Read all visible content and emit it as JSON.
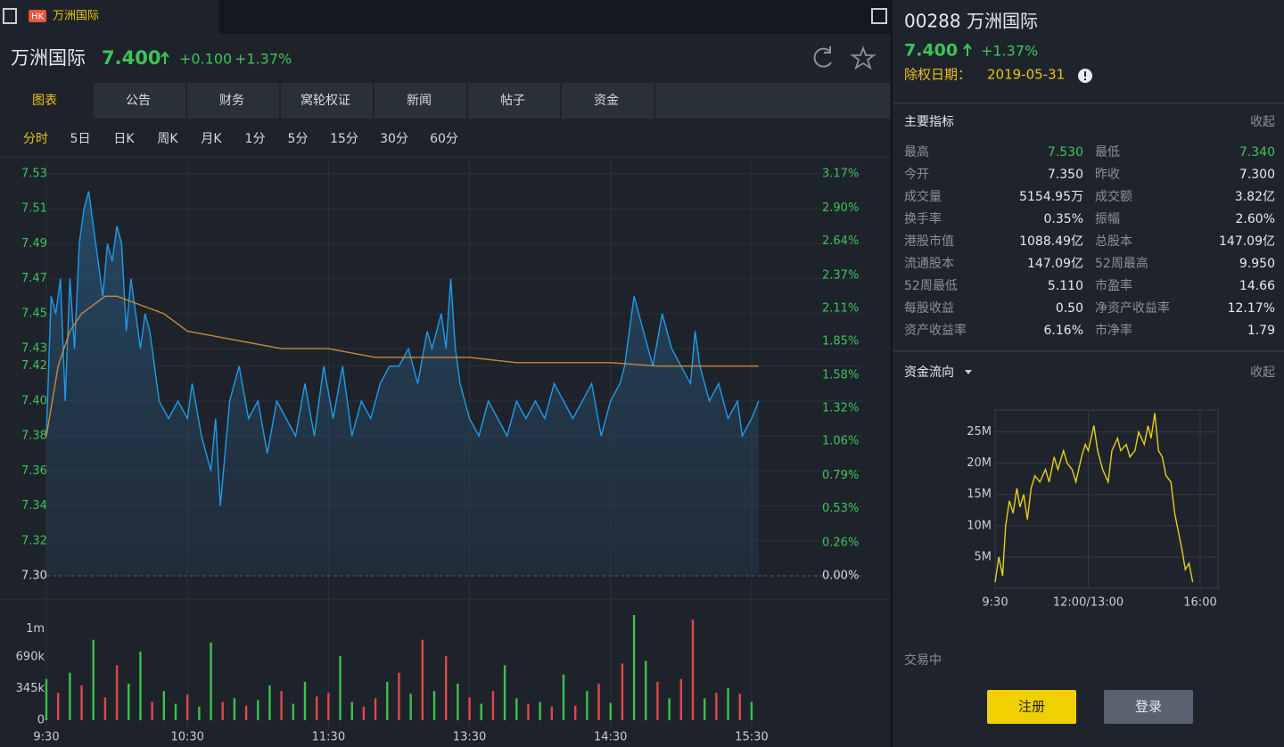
{
  "window": {
    "badge": "HK",
    "tab": "万洲国际"
  },
  "header": {
    "name": "万洲国际",
    "price": "7.400",
    "change": "+0.100",
    "change_pct": "+1.37%"
  },
  "tabs": [
    "图表",
    "公告",
    "财务",
    "窝轮权证",
    "新闻",
    "帖子",
    "资金"
  ],
  "periods": [
    "分时",
    "5日",
    "日K",
    "周K",
    "月K",
    "1分",
    "5分",
    "15分",
    "30分",
    "60分"
  ],
  "sidebar": {
    "title": "00288 万洲国际",
    "price": "7.400",
    "change_pct": "+1.37%",
    "ex_date_label": "除权日期：",
    "ex_date": "2019-05-31",
    "indicators_title": "主要指标",
    "collapse": "收起",
    "flow_title": "资金流向",
    "flow_collapse": "收起",
    "status": "交易中",
    "register": "注册",
    "login": "登录",
    "indicators": [
      {
        "label": "最高",
        "value": "7.530",
        "color": "#3ec35a"
      },
      {
        "label": "最低",
        "value": "7.340",
        "color": "#3ec35a"
      },
      {
        "label": "今开",
        "value": "7.350"
      },
      {
        "label": "昨收",
        "value": "7.300"
      },
      {
        "label": "成交量",
        "value": "5154.95万"
      },
      {
        "label": "成交额",
        "value": "3.82亿"
      },
      {
        "label": "换手率",
        "value": "0.35%"
      },
      {
        "label": "振幅",
        "value": "2.60%"
      },
      {
        "label": "港股市值",
        "value": "1088.49亿"
      },
      {
        "label": "总股本",
        "value": "147.09亿"
      },
      {
        "label": "流通股本",
        "value": "147.09亿"
      },
      {
        "label": "52周最高",
        "value": "9.950"
      },
      {
        "label": "52周最低",
        "value": "5.110"
      },
      {
        "label": "市盈率",
        "value": "14.66"
      },
      {
        "label": "每股收益",
        "value": "0.50"
      },
      {
        "label": "净资产收益率",
        "value": "12.17%"
      },
      {
        "label": "资产收益率",
        "value": "6.16%"
      },
      {
        "label": "市净率",
        "value": "1.79"
      }
    ]
  },
  "chart_data": [
    {
      "type": "line",
      "xlim": [
        0,
        330
      ],
      "ylim": [
        7.3,
        7.53
      ],
      "y2lim": [
        0,
        3.17
      ],
      "grid": true,
      "xticks": [
        {
          "value": 0,
          "label": "9:30"
        },
        {
          "value": 60,
          "label": "10:30"
        },
        {
          "value": 120,
          "label": "11:30"
        },
        {
          "value": 180,
          "label": "13:30"
        },
        {
          "value": 240,
          "label": "14:30"
        },
        {
          "value": 300,
          "label": "15:30"
        }
      ],
      "yticks": [
        7.53,
        7.51,
        7.49,
        7.47,
        7.45,
        7.43,
        7.42,
        {
          "value": 7.4,
          "label": "7.40"
        },
        7.38,
        7.36,
        7.34,
        7.32,
        {
          "value": 7.3,
          "label": "7.30"
        }
      ],
      "y2ticks": [
        {
          "value": 3.17,
          "label": "3.17%"
        },
        {
          "value": 2.9,
          "label": "2.90%"
        },
        {
          "value": 2.64,
          "label": "2.64%"
        },
        {
          "value": 2.37,
          "label": "2.37%"
        },
        {
          "value": 2.11,
          "label": "2.11%"
        },
        {
          "value": 1.85,
          "label": "1.85%"
        },
        {
          "value": 1.58,
          "label": "1.58%"
        },
        {
          "value": 1.32,
          "label": "1.32%"
        },
        {
          "value": 1.06,
          "label": "1.06%"
        },
        {
          "value": 0.79,
          "label": "0.79%"
        },
        {
          "value": 0.53,
          "label": "0.53%"
        },
        {
          "value": 0.26,
          "label": "0.26%"
        },
        {
          "value": 0,
          "label": "0.00%"
        }
      ],
      "series": [
        {
          "color": "#1e9be9",
          "area": true,
          "x": [
            0,
            2,
            4,
            6,
            8,
            10,
            12,
            14,
            16,
            18,
            20,
            22,
            24,
            26,
            28,
            30,
            32,
            34,
            36,
            38,
            40,
            42,
            44,
            46,
            48,
            52,
            56,
            60,
            62,
            66,
            70,
            72,
            74,
            78,
            82,
            86,
            90,
            94,
            98,
            102,
            106,
            110,
            114,
            118,
            122,
            126,
            130,
            134,
            138,
            142,
            146,
            150,
            154,
            158,
            162,
            164,
            168,
            170,
            172,
            174,
            176,
            180,
            184,
            188,
            192,
            196,
            200,
            204,
            208,
            212,
            216,
            220,
            224,
            228,
            232,
            236,
            240,
            244,
            246,
            250,
            254,
            258,
            262,
            266,
            270,
            274,
            276,
            278,
            282,
            286,
            290,
            294,
            296,
            300,
            303
          ],
          "values": [
            7.38,
            7.46,
            7.45,
            7.47,
            7.4,
            7.47,
            7.43,
            7.49,
            7.51,
            7.52,
            7.5,
            7.48,
            7.46,
            7.49,
            7.48,
            7.5,
            7.49,
            7.44,
            7.47,
            7.45,
            7.43,
            7.45,
            7.44,
            7.42,
            7.4,
            7.39,
            7.4,
            7.39,
            7.41,
            7.38,
            7.36,
            7.39,
            7.34,
            7.4,
            7.42,
            7.39,
            7.4,
            7.37,
            7.4,
            7.39,
            7.38,
            7.41,
            7.38,
            7.42,
            7.39,
            7.42,
            7.38,
            7.4,
            7.39,
            7.41,
            7.42,
            7.42,
            7.43,
            7.41,
            7.44,
            7.43,
            7.45,
            7.43,
            7.47,
            7.43,
            7.41,
            7.39,
            7.38,
            7.4,
            7.39,
            7.38,
            7.4,
            7.39,
            7.4,
            7.39,
            7.41,
            7.4,
            7.39,
            7.4,
            7.41,
            7.38,
            7.4,
            7.41,
            7.42,
            7.46,
            7.44,
            7.42,
            7.45,
            7.43,
            7.42,
            7.41,
            7.44,
            7.42,
            7.4,
            7.41,
            7.39,
            7.4,
            7.38,
            7.39,
            7.4
          ]
        },
        {
          "color": "#c88a3a",
          "area": false,
          "x": [
            0,
            5,
            10,
            15,
            20,
            25,
            30,
            40,
            50,
            60,
            80,
            100,
            120,
            140,
            160,
            180,
            200,
            220,
            240,
            260,
            280,
            303
          ],
          "values": [
            7.38,
            7.42,
            7.44,
            7.45,
            7.455,
            7.46,
            7.46,
            7.455,
            7.45,
            7.44,
            7.435,
            7.43,
            7.43,
            7.425,
            7.425,
            7.425,
            7.422,
            7.422,
            7.422,
            7.42,
            7.42,
            7.42
          ]
        }
      ]
    },
    {
      "type": "bar",
      "xlim": [
        0,
        330
      ],
      "ylim": [
        0,
        1150000
      ],
      "yticks": [
        {
          "value": 1000000,
          "label": "1m"
        },
        {
          "value": 690000,
          "label": "690k"
        },
        {
          "value": 345000,
          "label": "345k"
        },
        0
      ],
      "x": [
        0,
        5,
        10,
        15,
        20,
        25,
        30,
        35,
        40,
        45,
        50,
        55,
        60,
        65,
        70,
        75,
        80,
        85,
        90,
        95,
        100,
        105,
        110,
        115,
        120,
        125,
        130,
        135,
        140,
        145,
        150,
        155,
        160,
        165,
        170,
        175,
        180,
        185,
        190,
        195,
        200,
        205,
        210,
        215,
        220,
        225,
        230,
        235,
        240,
        245,
        250,
        255,
        260,
        265,
        270,
        275,
        280,
        285,
        290,
        295,
        300
      ],
      "values": [
        450000,
        300000,
        520000,
        380000,
        880000,
        250000,
        600000,
        400000,
        750000,
        200000,
        320000,
        180000,
        280000,
        150000,
        850000,
        200000,
        240000,
        160000,
        220000,
        380000,
        320000,
        180000,
        420000,
        260000,
        300000,
        700000,
        200000,
        150000,
        240000,
        420000,
        520000,
        290000,
        880000,
        320000,
        700000,
        400000,
        250000,
        180000,
        320000,
        600000,
        240000,
        180000,
        200000,
        150000,
        500000,
        160000,
        320000,
        400000,
        190000,
        620000,
        1150000,
        650000,
        420000,
        240000,
        450000,
        1100000,
        240000,
        300000,
        350000,
        290000,
        200000
      ],
      "colors": [
        "#3cc04c",
        "#e0474c",
        "#3cc04c",
        "#e0474c",
        "#3cc04c",
        "#e0474c",
        "#e0474c",
        "#3cc04c",
        "#3cc04c",
        "#e0474c",
        "#3cc04c",
        "#3cc04c",
        "#e0474c",
        "#3cc04c",
        "#3cc04c",
        "#e0474c",
        "#3cc04c",
        "#e0474c",
        "#3cc04c",
        "#3cc04c",
        "#e0474c",
        "#3cc04c",
        "#3cc04c",
        "#e0474c",
        "#e0474c",
        "#3cc04c",
        "#3cc04c",
        "#e0474c",
        "#e0474c",
        "#3cc04c",
        "#e0474c",
        "#3cc04c",
        "#e0474c",
        "#3cc04c",
        "#e0474c",
        "#3cc04c",
        "#e0474c",
        "#3cc04c",
        "#e0474c",
        "#3cc04c",
        "#3cc04c",
        "#e0474c",
        "#3cc04c",
        "#e0474c",
        "#3cc04c",
        "#e0474c",
        "#3cc04c",
        "#e0474c",
        "#3cc04c",
        "#e0474c",
        "#3cc04c",
        "#3cc04c",
        "#e0474c",
        "#3cc04c",
        "#e0474c",
        "#e0474c",
        "#3cc04c",
        "#e0474c",
        "#3cc04c",
        "#e0474c",
        "#3cc04c"
      ]
    },
    {
      "type": "line",
      "xlim": [
        0,
        330
      ],
      "ylim": [
        0,
        28.5
      ],
      "grid": true,
      "xticks": [
        {
          "value": 0,
          "label": "9:30"
        },
        {
          "value": 150,
          "label": "12:00/13:00"
        },
        {
          "value": 330,
          "label": "16:00"
        }
      ],
      "yticks": [
        {
          "value": 25,
          "label": "25M"
        },
        {
          "value": 20,
          "label": "20M"
        },
        {
          "value": 15,
          "label": "15M"
        },
        {
          "value": 10,
          "label": "10M"
        },
        {
          "value": 5,
          "label": "5M"
        }
      ],
      "series": [
        {
          "color": "#e6cf1a",
          "area": false,
          "x": [
            0,
            6,
            12,
            17,
            23,
            29,
            35,
            40,
            46,
            52,
            58,
            64,
            72,
            81,
            87,
            95,
            101,
            110,
            116,
            124,
            130,
            139,
            145,
            150,
            159,
            165,
            173,
            182,
            188,
            197,
            202,
            211,
            217,
            225,
            231,
            240,
            246,
            251,
            257,
            263,
            269,
            275,
            283,
            289,
            295,
            301,
            306,
            312,
            318
          ],
          "values": [
            1,
            5,
            2,
            10,
            14,
            12,
            16,
            13,
            15,
            11,
            16,
            18,
            17,
            19,
            17,
            21,
            19,
            22,
            20,
            19,
            17,
            21,
            23,
            22,
            26,
            22,
            19,
            17,
            22,
            24,
            22,
            23,
            21,
            22,
            25,
            23,
            26,
            24,
            28,
            22,
            21,
            18,
            17,
            12,
            9,
            6,
            3,
            4,
            1
          ]
        }
      ]
    }
  ]
}
